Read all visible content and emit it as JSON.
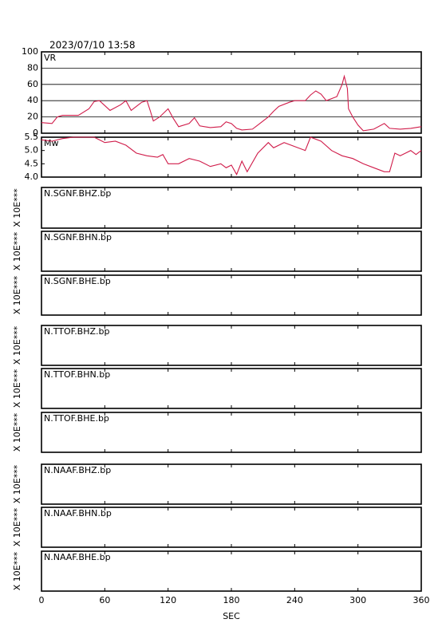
{
  "chart_data": [
    {
      "type": "line",
      "title": "2023/07/10 13:58",
      "label": "VR",
      "color": "#d01c4a",
      "grid": true,
      "xlim": [
        0,
        360
      ],
      "ylim": [
        0,
        100
      ],
      "yticks": [
        0,
        20,
        40,
        60,
        80,
        100
      ],
      "x": [
        0,
        10,
        15,
        20,
        35,
        45,
        50,
        55,
        60,
        65,
        75,
        80,
        85,
        90,
        95,
        100,
        103,
        106,
        112,
        120,
        125,
        130,
        140,
        145,
        150,
        160,
        170,
        175,
        180,
        185,
        190,
        200,
        205,
        215,
        220,
        225,
        235,
        240,
        250,
        255,
        260,
        265,
        270,
        280,
        285,
        287,
        290,
        291,
        295,
        300,
        305,
        315,
        325,
        330,
        340,
        350,
        360
      ],
      "values": [
        13,
        12,
        20,
        22,
        22,
        30,
        39,
        40,
        34,
        28,
        35,
        40,
        28,
        33,
        38,
        40,
        28,
        15,
        20,
        30,
        18,
        8,
        12,
        19,
        9,
        7,
        8,
        14,
        12,
        6,
        4,
        5,
        10,
        20,
        27,
        33,
        38,
        40,
        40,
        47,
        52,
        48,
        40,
        45,
        60,
        70,
        55,
        30,
        20,
        10,
        3,
        5,
        12,
        6,
        5,
        6,
        8
      ]
    },
    {
      "type": "line",
      "label": "Mw",
      "color": "#d01c4a",
      "grid": false,
      "xlim": [
        0,
        360
      ],
      "ylim": [
        4.0,
        5.5
      ],
      "yticks": [
        {
          "value": 4.0,
          "label": "4.0"
        },
        {
          "value": 4.5,
          "label": "4.5"
        },
        {
          "value": 5.0,
          "label": "5.0"
        },
        {
          "value": 5.5,
          "label": "5.5"
        }
      ],
      "x": [
        0,
        10,
        20,
        30,
        50,
        60,
        70,
        80,
        90,
        100,
        110,
        115,
        120,
        130,
        140,
        150,
        160,
        170,
        175,
        180,
        185,
        190,
        195,
        205,
        215,
        220,
        230,
        250,
        255,
        265,
        275,
        285,
        295,
        305,
        315,
        325,
        330,
        335,
        340,
        350,
        355,
        360
      ],
      "values": [
        5.4,
        5.35,
        5.45,
        5.5,
        5.5,
        5.3,
        5.35,
        5.2,
        4.9,
        4.8,
        4.75,
        4.85,
        4.5,
        4.5,
        4.7,
        4.6,
        4.4,
        4.5,
        4.35,
        4.45,
        4.1,
        4.6,
        4.2,
        4.9,
        5.3,
        5.1,
        5.3,
        5.0,
        5.5,
        5.35,
        5.0,
        4.8,
        4.7,
        4.5,
        4.35,
        4.2,
        4.2,
        4.9,
        4.8,
        5.0,
        4.85,
        5.0
      ]
    },
    {
      "type": "waveform",
      "label": "N.SGNF.BHZ.bp",
      "ylabel": "X 10E***"
    },
    {
      "type": "waveform",
      "label": "N.SGNF.BHN.bp",
      "ylabel": "X 10E***"
    },
    {
      "type": "waveform",
      "label": "N.SGNF.BHE.bp",
      "ylabel": "X 10E***"
    },
    {
      "type": "waveform",
      "label": "N.TTOF.BHZ.bp",
      "ylabel": "X 10E***"
    },
    {
      "type": "waveform",
      "label": "N.TTOF.BHN.bp",
      "ylabel": "X 10E***"
    },
    {
      "type": "waveform",
      "label": "N.TTOF.BHE.bp",
      "ylabel": "X 10E***"
    },
    {
      "type": "waveform",
      "label": "N.NAAF.BHZ.bp",
      "ylabel": "X 10E***"
    },
    {
      "type": "waveform",
      "label": "N.NAAF.BHN.bp",
      "ylabel": "X 10E***"
    },
    {
      "type": "waveform",
      "label": "N.NAAF.BHE.bp",
      "ylabel": "X 10E***",
      "xlabel": "SEC",
      "xlim": [
        0,
        360
      ],
      "xticks": [
        0,
        60,
        120,
        180,
        240,
        300,
        360
      ]
    }
  ]
}
